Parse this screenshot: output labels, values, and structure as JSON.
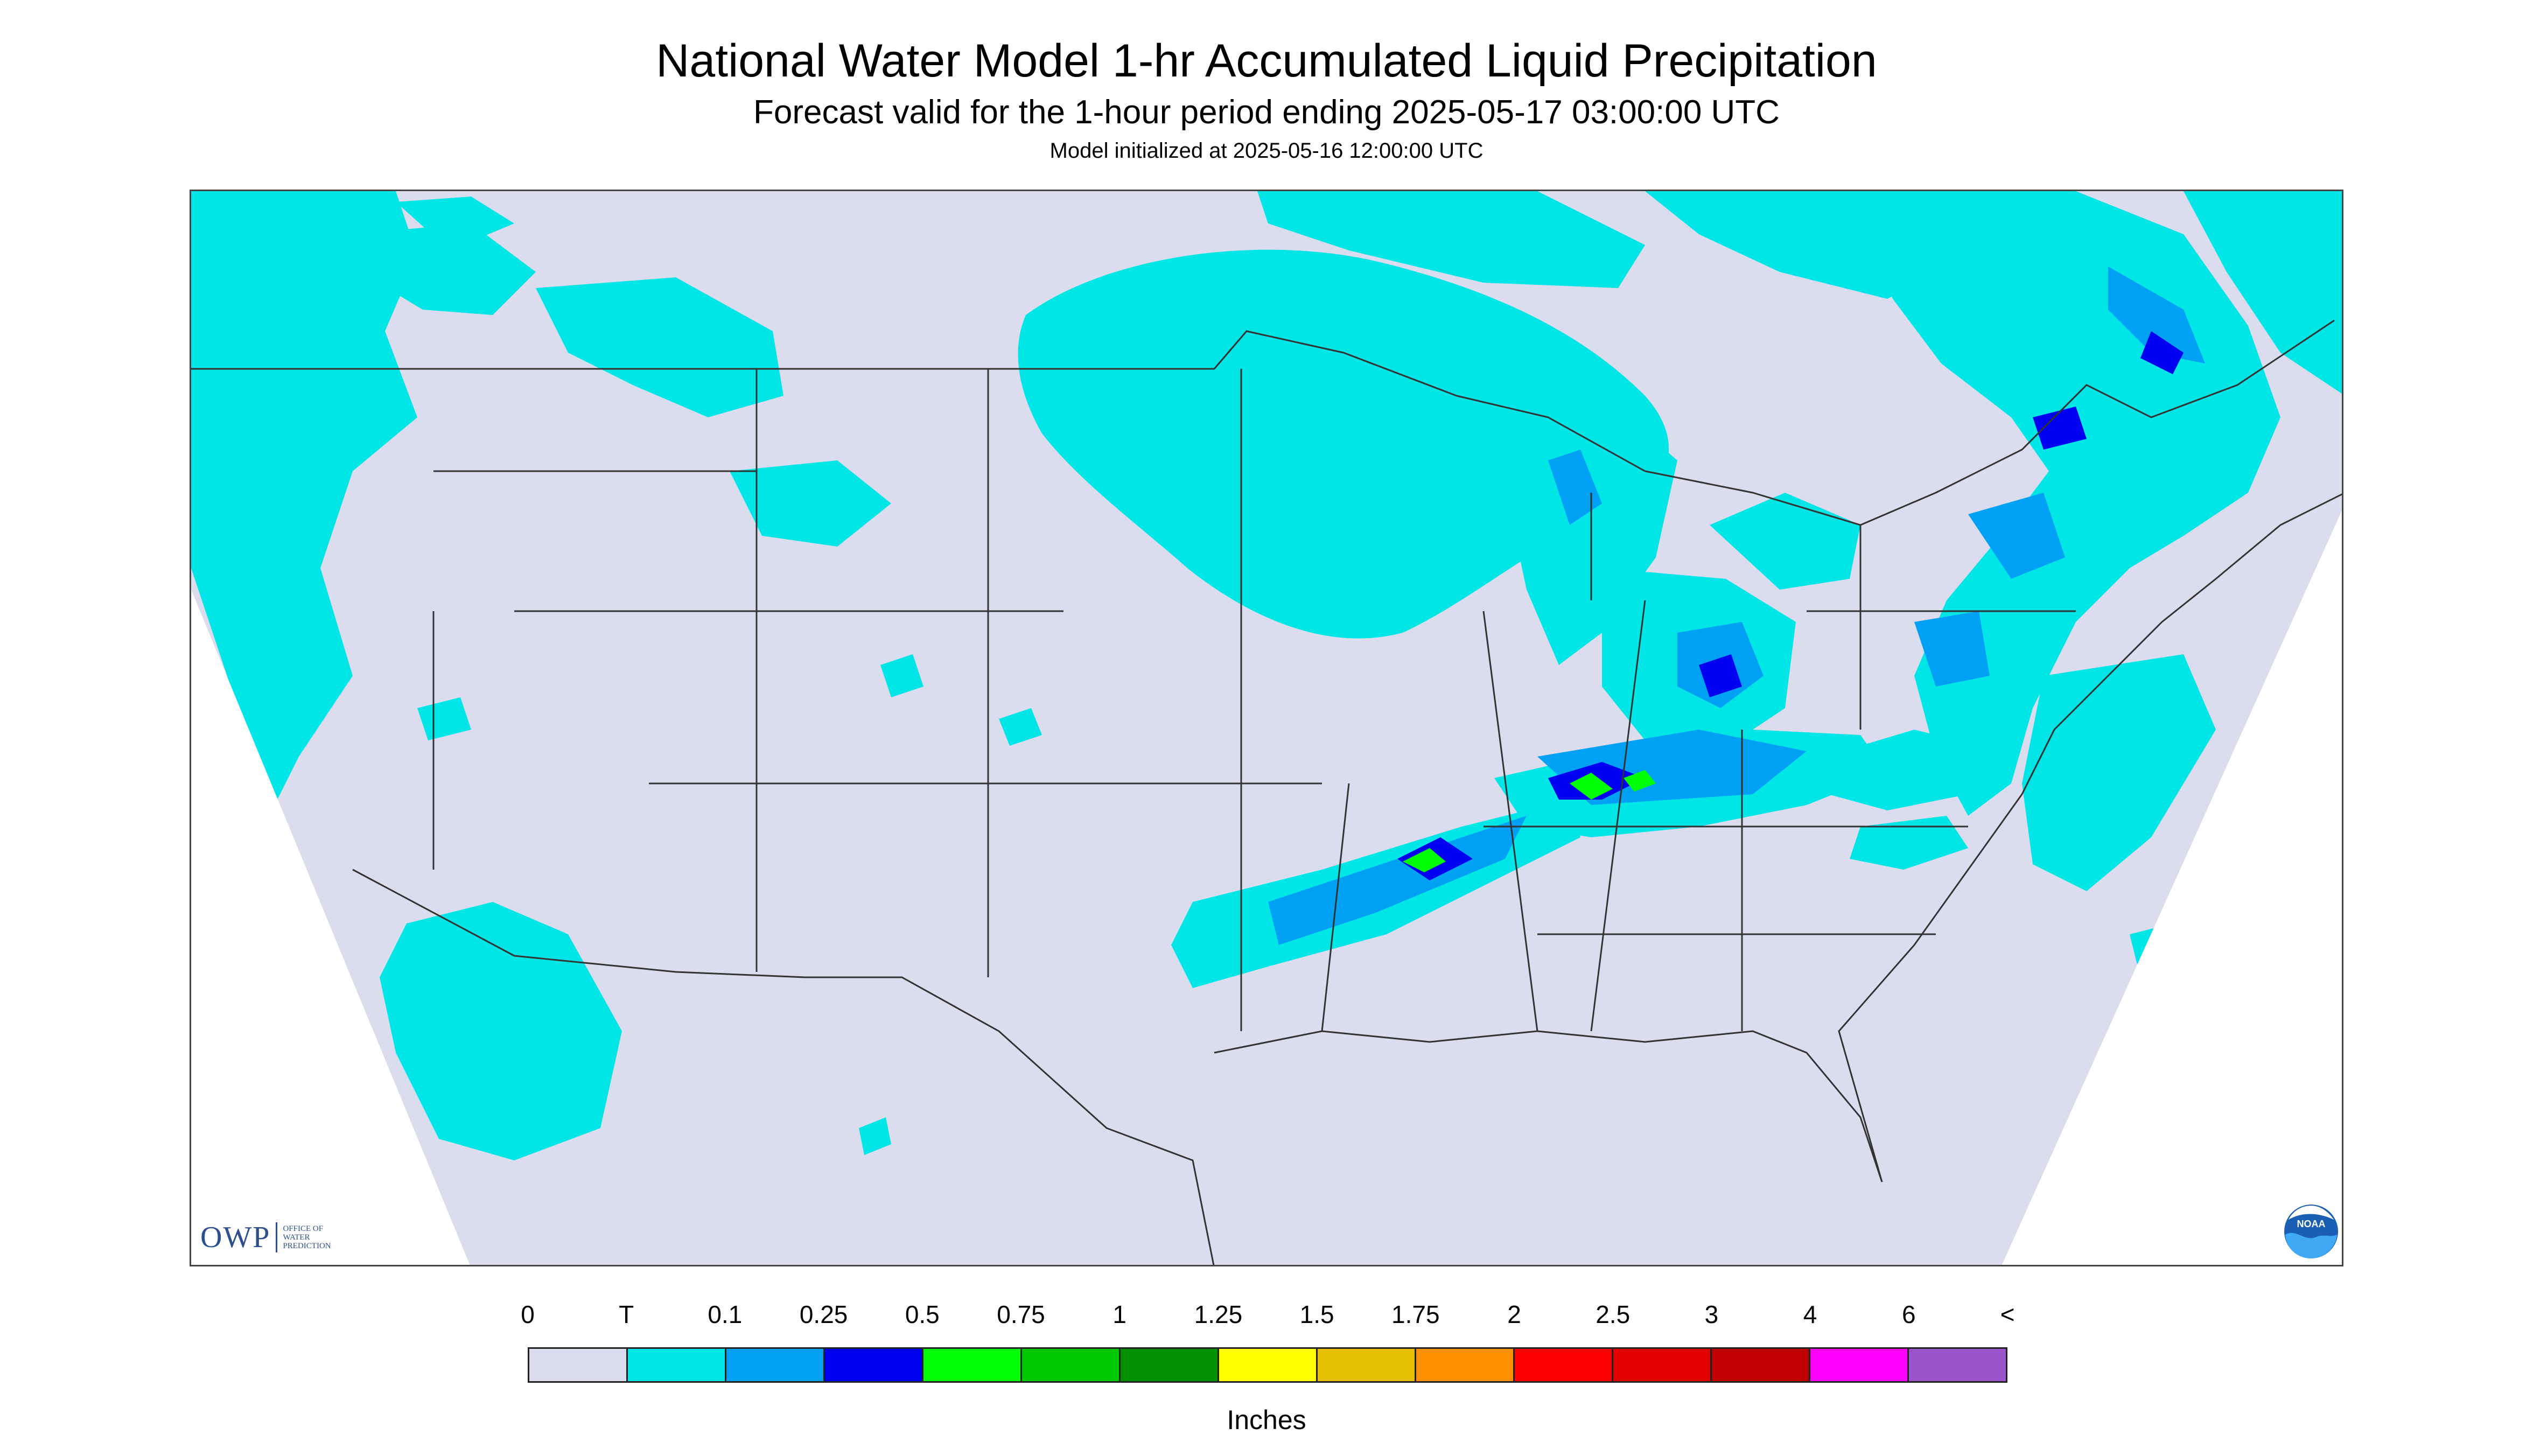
{
  "title": "National Water Model 1-hr Accumulated Liquid Precipitation",
  "subtitle": "Forecast valid for the 1-hour period ending 2025-05-17 03:00:00 UTC",
  "init_text": "Model initialized at 2025-05-16 12:00:00 UTC",
  "logos": {
    "owp_letters": "OWP",
    "owp_line1": "OFFICE OF",
    "owp_line2": "WATER",
    "owp_line3": "PREDICTION",
    "noaa_text": "NOAA"
  },
  "legend": {
    "labels": [
      "0",
      "T",
      "0.1",
      "0.25",
      "0.5",
      "0.75",
      "1",
      "1.25",
      "1.5",
      "1.75",
      "2",
      "2.5",
      "3",
      "4",
      "6",
      "<"
    ],
    "colors": [
      "#dcdcef",
      "#00e6e6",
      "#00a0f5",
      "#0000f0",
      "#00ff00",
      "#00c800",
      "#009000",
      "#ffff00",
      "#e6c000",
      "#ff9000",
      "#ff0000",
      "#e00000",
      "#c00000",
      "#ff00ff",
      "#9955c9"
    ],
    "units": "Inches"
  },
  "colors": {
    "no_precip": "#dcdcef",
    "trace": "#00e6e6",
    "light": "#00a0f5",
    "moderate": "#0000f0",
    "heavy": "#00ff00",
    "borders": "#333333"
  }
}
